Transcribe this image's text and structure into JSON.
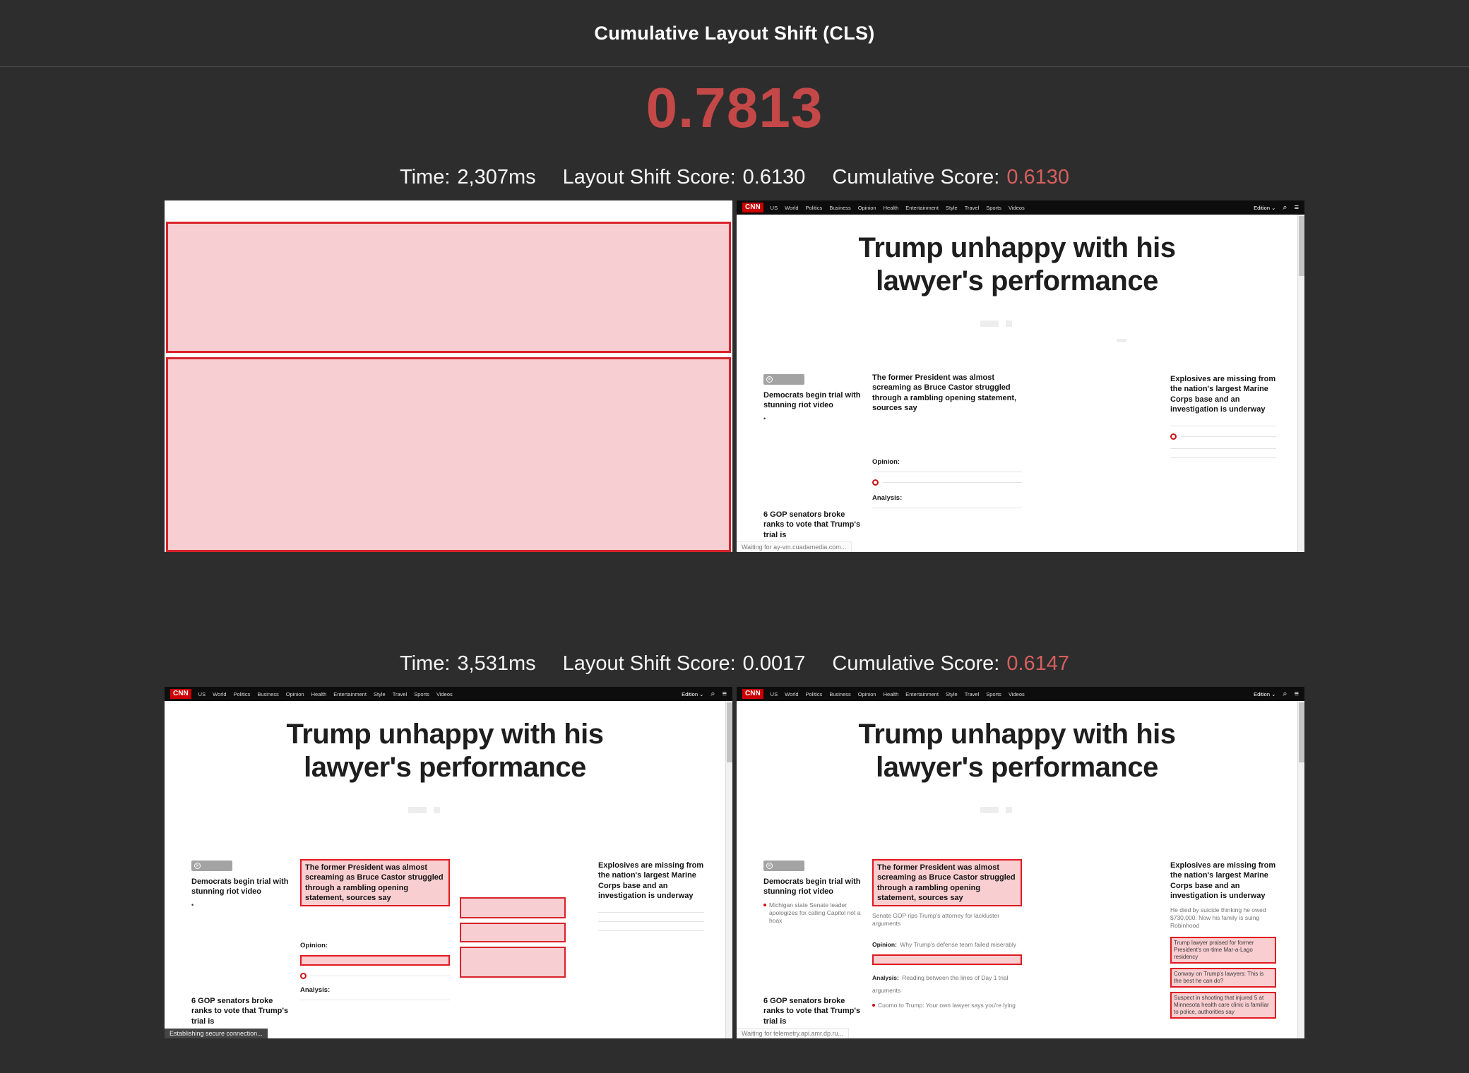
{
  "header": {
    "title": "Cumulative Layout Shift (CLS)"
  },
  "cls": {
    "value": "0.7813"
  },
  "entries": [
    {
      "time_label": "Time:",
      "time": "2,307ms",
      "shift_label": "Layout Shift Score:",
      "shift": "0.6130",
      "cum_label": "Cumulative Score:",
      "cum": "0.6130"
    },
    {
      "time_label": "Time:",
      "time": "3,531ms",
      "shift_label": "Layout Shift Score:",
      "shift": "0.0017",
      "cum_label": "Cumulative Score:",
      "cum": "0.6147"
    }
  ],
  "cnn": {
    "logo": "CNN",
    "nav_items": [
      "US",
      "World",
      "Politics",
      "Business",
      "Opinion",
      "Health",
      "Entertainment",
      "Style",
      "Travel",
      "Sports",
      "Videos"
    ],
    "edition_label": "Edition",
    "headline_line1": "Trump unhappy with his",
    "headline_line2": "lawyer's performance",
    "story_left_1": "Democrats begin trial with stunning riot video",
    "story_left_2": "6 GOP senators broke ranks to vote that Trump's trial is",
    "story_mid": "The former President was almost screaming as Bruce Castor struggled through a rambling opening statement, sources say",
    "opinion_label": "Opinion:",
    "analysis_label": "Analysis:",
    "story_right": "Explosives are missing from the nation's largest Marine Corps base and an investigation is underway"
  },
  "f2": {
    "status": "Waiting for ay-vm.cuadamedia.com..."
  },
  "f3": {
    "status": "Establishing secure connection..."
  },
  "f4": {
    "status": "Waiting for telemetry.api.amr.dp.ru...",
    "left_sub": "Michigan state Senate leader apologizes for calling Capitol riot a hoax",
    "mid_sub": "Senate GOP rips Trump's attorney for lackluster arguments",
    "opinion_text": "Why Trump's defense team failed miserably",
    "analysis_text": "Reading between the lines of Day 1 trial arguments",
    "mid_bullet": "Cuomo to Trump: Your own lawyer says you're lying",
    "right_sub": "He died by suicide thinking he owed $730,000. Now his family is suing Robinhood",
    "right_box1": "Trump lawyer praised for former President's on-time Mar-a-Lago residency",
    "right_box2": "Conway on Trump's lawyers: This is the best he can do?",
    "right_box3": "Suspect in shooting that injured 5 at Minnesota health care clinic is familiar to police, authorities say"
  },
  "icons": {
    "chevron_down": "⌄",
    "search": "⌕",
    "menu": "≡",
    "close": "✕",
    "bullet": "•"
  },
  "colors": {
    "background": "#2e2d2d",
    "accent_red": "#c54848",
    "meta_red": "#d75f5f",
    "highlight_fill": "#f8ced1",
    "highlight_border": "#e0191f",
    "cnn_red": "#cc0000"
  }
}
